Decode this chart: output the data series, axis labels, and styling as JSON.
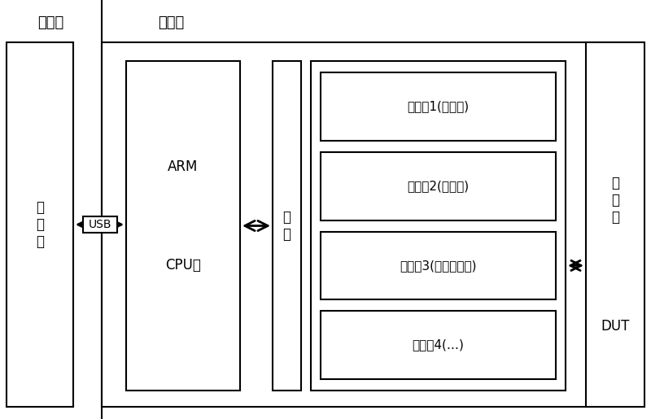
{
  "bg_color": "#ffffff",
  "line_color": "#000000",
  "title_upper_left": "上位机",
  "title_tester": "测试件",
  "label_computer": "计\n算\n机",
  "label_arm": "ARM",
  "label_cpu": "CPU板",
  "label_bus": "总\n线",
  "label_usb": "USB",
  "label_func1": "功能朆1(高压板)",
  "label_func2": "功能朆2(低压板)",
  "label_func3": "功能朆3(脉冲电流板)",
  "label_func4": "功能朆4(…)",
  "label_test_board": "测\n试\n板",
  "label_dut": "DUT",
  "figsize": [
    8.0,
    5.15
  ],
  "dpi": 100
}
